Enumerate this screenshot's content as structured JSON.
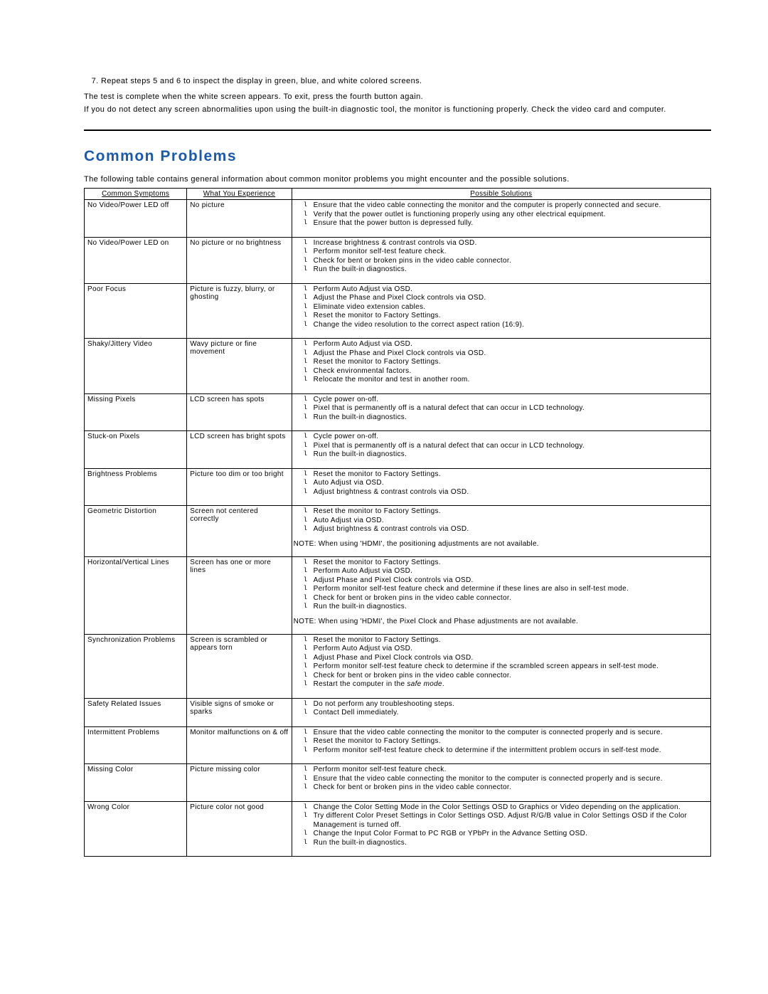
{
  "intro": {
    "step7": "Repeat steps 5 and 6 to inspect the display in green, blue, and white colored screens.",
    "test_complete": "The test is complete when the white screen appears. To exit, press the fourth button again.",
    "no_abnormalities": "If you do not detect any screen abnormalities upon using the built-in diagnostic tool, the monitor is functioning properly. Check the video card and computer."
  },
  "section_title": "Common Problems",
  "section_intro": "The following table contains general information about common monitor problems you might encounter and the possible solutions.",
  "columns": {
    "symptoms": "Common Symptoms",
    "experience": "What You Experience",
    "solutions": "Possible Solutions"
  },
  "col_widths": {
    "symptoms": 142,
    "experience": 145,
    "solutions": 580
  },
  "rows": [
    {
      "symptom": "No Video/Power LED off",
      "experience": "No picture",
      "solutions": [
        "Ensure that the video cable connecting the monitor and the computer is properly connected and secure.",
        "Verify that the power outlet is functioning properly using any other electrical equipment.",
        "Ensure that the power button is depressed fully."
      ]
    },
    {
      "symptom": "No Video/Power LED on",
      "experience": "No picture or no brightness",
      "solutions": [
        "Increase brightness & contrast controls via OSD.",
        "Perform monitor self-test feature check.",
        "Check for bent or broken pins in the video cable connector.",
        "Run the built-in diagnostics."
      ]
    },
    {
      "symptom": "Poor Focus",
      "experience": "Picture is fuzzy, blurry, or ghosting",
      "solutions": [
        "Perform Auto Adjust via OSD.",
        "Adjust the Phase and Pixel Clock controls via OSD.",
        "Eliminate video extension cables.",
        "Reset the monitor to Factory Settings.",
        "Change the video resolution to the correct aspect ration (16:9)."
      ]
    },
    {
      "symptom": "Shaky/Jittery Video",
      "experience": "Wavy picture or fine movement",
      "solutions": [
        "Perform Auto Adjust via OSD.",
        "Adjust the Phase and Pixel Clock controls via OSD.",
        "Reset the monitor to Factory Settings.",
        "Check environmental factors.",
        "Relocate the monitor and test in another room."
      ]
    },
    {
      "symptom": "Missing Pixels",
      "experience": "LCD screen has spots",
      "solutions": [
        "Cycle power on-off.",
        "Pixel that is permanently off is a natural defect that can occur in LCD technology.",
        "Run the built-in diagnostics."
      ]
    },
    {
      "symptom": "Stuck-on Pixels",
      "experience": "LCD screen has bright spots",
      "solutions": [
        "Cycle power on-off.",
        "Pixel that is permanently off is a natural defect that can occur in LCD technology.",
        "Run the built-in diagnostics."
      ]
    },
    {
      "symptom": "Brightness Problems",
      "experience": "Picture too dim or too bright",
      "solutions": [
        "Reset the monitor to Factory Settings.",
        "Auto Adjust via OSD.",
        "Adjust brightness & contrast controls via OSD."
      ]
    },
    {
      "symptom": "Geometric Distortion",
      "experience": "Screen not centered correctly",
      "solutions": [
        "Reset the monitor to Factory Settings.",
        "Auto Adjust via OSD.",
        "Adjust brightness & contrast controls via OSD."
      ],
      "note": "NOTE: When using 'HDMI', the positioning adjustments are not available."
    },
    {
      "symptom": "Horizontal/Vertical Lines",
      "experience": "Screen has one or more lines",
      "solutions": [
        "Reset the monitor to Factory Settings.",
        "Perform Auto Adjust via OSD.",
        "Adjust Phase and Pixel Clock controls via OSD.",
        "Perform monitor self-test feature check and determine if these lines are also in self-test mode.",
        "Check for bent or broken pins in the video cable connector.",
        "Run the built-in diagnostics."
      ],
      "note": "NOTE: When using 'HDMI', the Pixel Clock and Phase adjustments are not available."
    },
    {
      "symptom": "Synchronization Problems",
      "experience": "Screen is scrambled or appears torn",
      "solutions": [
        "Reset the monitor to Factory Settings.",
        "Perform Auto Adjust via OSD.",
        "Adjust Phase and Pixel Clock controls via OSD.",
        "Perform monitor self-test feature check to determine if the scrambled screen appears in self-test mode.",
        "Check for bent or broken pins in the video cable connector.",
        "Restart the computer in the <span class=\"italic\">safe mode</span>."
      ]
    },
    {
      "symptom": "Safety Related Issues",
      "experience": "Visible signs of smoke or sparks",
      "solutions": [
        "Do not perform any troubleshooting steps.",
        "Contact Dell immediately."
      ]
    },
    {
      "symptom": "Intermittent Problems",
      "experience": "Monitor malfunctions on & off",
      "solutions": [
        "Ensure that the video cable connecting the monitor to the computer is connected properly and is secure.",
        "Reset the monitor to Factory Settings.",
        "Perform monitor self-test feature check to determine if the intermittent problem occurs in self-test mode."
      ]
    },
    {
      "symptom": "Missing Color",
      "experience": "Picture missing color",
      "solutions": [
        "Perform monitor self-test feature check.",
        "Ensure that the video cable connecting the monitor to the computer is connected properly and is secure.",
        "Check for bent or broken pins in the video cable connector."
      ]
    },
    {
      "symptom": "Wrong Color",
      "experience": "Picture color not good",
      "solutions": [
        "Change the Color Setting Mode in the Color Settings OSD to Graphics or Video depending on the application.",
        "Try different Color Preset Settings in Color Settings OSD. Adjust R/G/B value in Color Settings OSD if the Color Management is turned off.",
        "Change the Input Color Format to PC RGB or YPbPr in the Advance Setting OSD.",
        "Run the built-in diagnostics."
      ]
    }
  ]
}
